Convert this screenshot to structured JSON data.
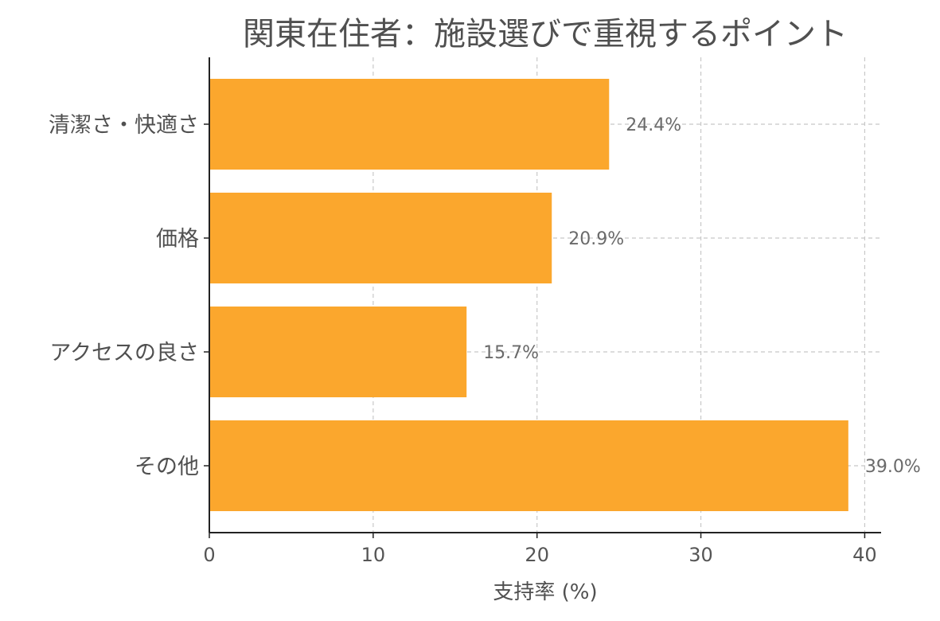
{
  "chart_data": {
    "type": "bar",
    "orientation": "horizontal",
    "title": "関東在住者：施設選びで重視するポイント",
    "xlabel": "支持率 (%)",
    "ylabel": "",
    "categories": [
      "清潔さ・快適さ",
      "価格",
      "アクセスの良さ",
      "その他"
    ],
    "values": [
      24.4,
      20.9,
      15.7,
      39.0
    ],
    "value_labels": [
      "24.4%",
      "20.9%",
      "15.7%",
      "39.0%"
    ],
    "xlim": [
      0,
      41
    ],
    "xticks": [
      0,
      10,
      20,
      30,
      40
    ],
    "xtick_labels": [
      "0",
      "10",
      "20",
      "30",
      "40"
    ],
    "grid": true,
    "bar_color": "#fba72d"
  }
}
